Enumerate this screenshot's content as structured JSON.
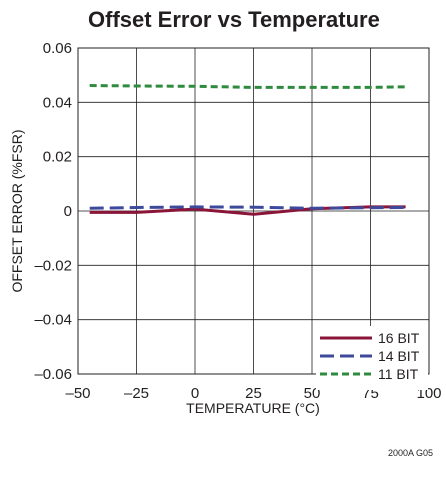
{
  "chart_data": {
    "type": "line",
    "title": "Offset Error vs Temperature",
    "xlabel": "TEMPERATURE (°C)",
    "ylabel": "OFFSET ERROR (%FSR)",
    "xlim": [
      -50,
      100
    ],
    "ylim": [
      -0.06,
      0.06
    ],
    "x_ticks": [
      -50,
      -25,
      0,
      25,
      50,
      75,
      100
    ],
    "x_tick_labels": [
      "–50",
      "–25",
      "0",
      "25",
      "50",
      "75",
      "100"
    ],
    "y_ticks": [
      -0.06,
      -0.04,
      -0.02,
      0,
      0.02,
      0.04,
      0.06
    ],
    "y_tick_labels": [
      "–0.06",
      "–0.04",
      "–0.02",
      "0",
      "0.02",
      "0.04",
      "0.06"
    ],
    "grid": true,
    "legend_position": "bottom-right",
    "series": [
      {
        "name": "16 BIT",
        "color": "#8b1538",
        "style": "solid",
        "x": [
          -45,
          -25,
          0,
          25,
          50,
          75,
          90
        ],
        "y": [
          -0.0005,
          -0.0005,
          0.0007,
          -0.0012,
          0.0008,
          0.0015,
          0.0015
        ]
      },
      {
        "name": "14 BIT",
        "color": "#3d4a9c",
        "style": "long-dash",
        "x": [
          -45,
          -25,
          0,
          25,
          50,
          75,
          90
        ],
        "y": [
          0.001,
          0.0013,
          0.0015,
          0.0014,
          0.001,
          0.0012,
          0.0013
        ]
      },
      {
        "name": "11 BIT",
        "color": "#2e8b3e",
        "style": "short-dash",
        "x": [
          -45,
          -25,
          0,
          25,
          50,
          75,
          90
        ],
        "y": [
          0.0462,
          0.046,
          0.0459,
          0.0455,
          0.0455,
          0.0455,
          0.0457
        ]
      }
    ]
  },
  "footnote": "2000A G05"
}
